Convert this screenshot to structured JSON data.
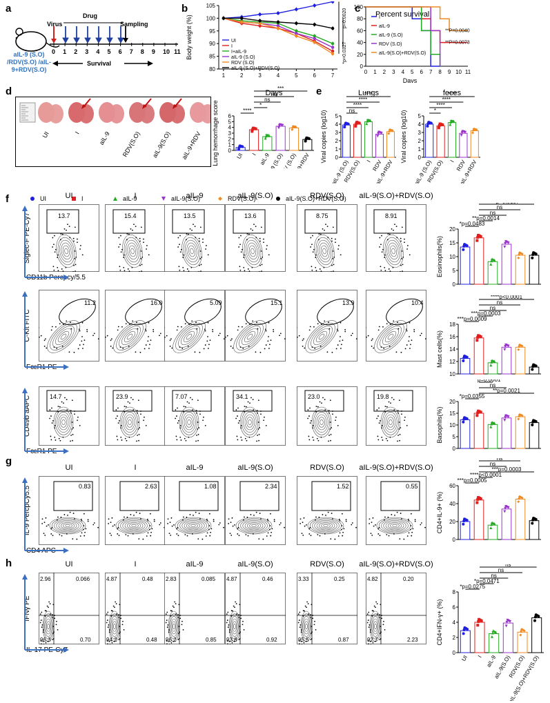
{
  "panels": {
    "a": {
      "letter": "a",
      "labels": {
        "virus": "Virus",
        "drug": "Drug",
        "sampling": "Sampling",
        "survival": "Survival"
      },
      "groups_text": "aIL-9 (S.O)\n/RDV(S.O) /aIL-\n9+RDV(S.O)",
      "days": [
        "0",
        "1",
        "2",
        "3",
        "4",
        "5",
        "6",
        "7",
        "8",
        "9",
        "10",
        "11"
      ]
    },
    "b": {
      "letter": "b"
    },
    "c": {
      "letter": "c"
    },
    "d": {
      "letter": "d",
      "lung_labels": [
        "UI",
        "I",
        "aIL-9",
        "RDV(S.O)",
        "aIL-9(S.O)",
        "aIL-9+RDV"
      ]
    },
    "e": {
      "letter": "e"
    },
    "f": {
      "letter": "f"
    },
    "g": {
      "letter": "g"
    },
    "h": {
      "letter": "h"
    }
  },
  "legend_f": [
    {
      "label": "UI",
      "color": "#1f1fe0",
      "marker": "circle"
    },
    {
      "label": "I",
      "color": "#e01f1f",
      "marker": "square"
    },
    {
      "label": "aIL-9",
      "color": "#22aa22",
      "marker": "triangle"
    },
    {
      "label": "aIL-9(S.O)",
      "color": "#9933cc",
      "marker": "tri-down"
    },
    {
      "label": "RDV(S.O)",
      "color": "#f08a1f",
      "marker": "diamond"
    },
    {
      "label": "aIL-9(S.O)+RDV(S.O)",
      "color": "#000000",
      "marker": "circle"
    }
  ],
  "flow_titles": [
    "UI",
    "I",
    "aIL-9",
    "aIL-9(S.O)",
    "RDV(S.O)",
    "aIL-9(S.O)+RDV(S.O)"
  ],
  "flow_titles_h": [
    "UI",
    "I",
    "aIL-9",
    "aIL-9(S.O)",
    "RDV(S.O)",
    "aIL-9(S.O)+RDV(S.O)"
  ],
  "flow_rows": {
    "eos": {
      "ylabel": "Siglec-F PE-Cy7",
      "xlabel": "CD11b Percpcy/5.5",
      "values": [
        "13.7",
        "15.4",
        "13.5",
        "13.6",
        "8.75",
        "8.91"
      ]
    },
    "mast": {
      "ylabel": "C-Kit FITC",
      "xlabel": "FcεR1 PE",
      "values": [
        "11.2",
        "16.0",
        "5.09",
        "15.1",
        "13.9",
        "10.4"
      ]
    },
    "baso": {
      "ylabel": "CD49b aAPC",
      "xlabel": "FcεR1 PE",
      "values": [
        "14.7",
        "23.9",
        "7.07",
        "34.1",
        "23.0",
        "19.8"
      ]
    },
    "il9": {
      "ylabel": "IL-9 PercpCy5.5",
      "xlabel": "CD4 APC",
      "values": [
        "0.83",
        "2.63",
        "1.08",
        "2.34",
        "1.52",
        "0.55"
      ]
    },
    "ifn": {
      "ylabel": "IFNγ PE",
      "xlabel": "IL-17 PE-Cy7",
      "quads": [
        [
          "2.96",
          "0.066",
          "96.3",
          "0.70"
        ],
        [
          "4.87",
          "0.48",
          "94.2",
          "0.48"
        ],
        [
          "2.83",
          "0.085",
          "96.2",
          "0.85"
        ],
        [
          "4.87",
          "0.46",
          "93.8",
          "0.92"
        ],
        [
          "3.33",
          "0.25",
          "95.5",
          "0.87"
        ],
        [
          "4.82",
          "0.20",
          "92.7",
          "2.23"
        ]
      ]
    }
  },
  "chart_data": [
    {
      "type": "line",
      "panel": "b",
      "ylabel": "Body weight (%)",
      "x": [
        1,
        2,
        3,
        4,
        5,
        6,
        7
      ],
      "ylim": [
        80,
        105
      ],
      "yticks": [
        "80",
        "85",
        "90",
        "95",
        "100",
        "105"
      ],
      "series": [
        {
          "name": "UI",
          "color": "#1f1fe0",
          "values": [
            100,
            100.5,
            101.5,
            102,
            103.5,
            105,
            106.5
          ]
        },
        {
          "name": "I",
          "color": "#e01f1f",
          "values": [
            100,
            98,
            97,
            96,
            94,
            91,
            87
          ]
        },
        {
          "name": "I+aIL-9",
          "color": "#22aa22",
          "values": [
            100,
            99,
            98.5,
            98,
            95,
            93,
            90
          ]
        },
        {
          "name": "aIL-9 (S.O)",
          "color": "#9933cc",
          "values": [
            100,
            98.5,
            98,
            97,
            94,
            92,
            88.5
          ]
        },
        {
          "name": "RDV (S.O)",
          "color": "#f08a1f",
          "values": [
            100,
            98.5,
            98,
            96,
            93,
            90.5,
            86
          ]
        },
        {
          "name": "aIL-9 (S.O)+RDV(S.O)",
          "color": "#000000",
          "values": [
            100,
            100,
            99,
            98.5,
            98,
            97.5,
            96
          ]
        }
      ],
      "annotations": [
        "p=0.0020",
        "*p=0.0327"
      ]
    },
    {
      "type": "line",
      "panel": "c",
      "ylabel": "Percent survival",
      "xlabel": "Days",
      "xticks": [
        "0",
        "1",
        "2",
        "3",
        "4",
        "5",
        "6",
        "7",
        "8",
        "9",
        "10",
        "11"
      ],
      "yticks": [
        "0",
        "20",
        "40",
        "60",
        "80",
        "100"
      ],
      "series": [
        {
          "name": "I",
          "color": "#1f1fe0"
        },
        {
          "name": "aIL-9",
          "color": "#e01f1f"
        },
        {
          "name": "aIL-9 (S.O)",
          "color": "#22aa22"
        },
        {
          "name": "RDV (S.O)",
          "color": "#9933cc"
        },
        {
          "name": "aIL-9(S.O)+RDV(S.O)",
          "color": "#f08a1f"
        }
      ],
      "annotations": [
        "**P=0.0040",
        "**P=0.0073"
      ]
    },
    {
      "type": "bar",
      "panel": "d",
      "title": "Days",
      "ylabel": "Lung hemorrhage score",
      "categories": [
        "UI",
        "I",
        "aIL-9",
        "aIL-9 (S.O)",
        "RDV (S.O)",
        "aIL-9+RDV"
      ],
      "values": [
        0.5,
        3.6,
        2.4,
        4.2,
        3.9,
        1.9
      ],
      "ylim": [
        0,
        6
      ],
      "yticks": [
        "0",
        "1",
        "2",
        "3",
        "4",
        "5",
        "6"
      ],
      "annotations": [
        "****",
        "*",
        "ns",
        "ns",
        "***"
      ]
    },
    {
      "type": "bar",
      "panel": "e-lungs",
      "title": "Lungs",
      "ylabel": "Viral copies (log10)",
      "categories": [
        "aIL-9 (S.O)",
        "RDV(S.O)",
        "I",
        "RDV",
        "aIL-9+RDV"
      ],
      "values": [
        3.9,
        4.0,
        4.3,
        2.8,
        3.1
      ],
      "ylim": [
        0,
        5
      ],
      "yticks": [
        "0",
        "1",
        "2",
        "3",
        "4",
        "5"
      ],
      "annotations": [
        "ns",
        "*",
        "****",
        "****",
        "****"
      ]
    },
    {
      "type": "bar",
      "panel": "e-feces",
      "title": "feces",
      "ylabel": "Viral copies (log10)",
      "categories": [
        "aIL-9 (S.O)",
        "RDV(S.O)",
        "I",
        "RDV",
        "aIL-9+RDV"
      ],
      "values": [
        4.0,
        3.8,
        4.2,
        2.9,
        3.2
      ],
      "ylim": [
        0,
        5
      ],
      "yticks": [
        "0",
        "1",
        "2",
        "3",
        "4",
        "5"
      ],
      "annotations": [
        "*",
        "****",
        "****",
        "****"
      ]
    },
    {
      "type": "bar",
      "panel": "f-eos",
      "ylabel": "Eosinophils(%)",
      "categories": [
        "UI",
        "I",
        "aIL-9",
        "aIL-9(S.O)",
        "RDV(S.O)",
        "aIL-9(S.O)+RDV(S.O)"
      ],
      "values": [
        13.5,
        16.8,
        8.2,
        14.5,
        10.5,
        10.5
      ],
      "ylim": [
        0,
        20
      ],
      "yticks": [
        "0",
        "5",
        "10",
        "15",
        "20"
      ],
      "annotations": [
        "*p=0.0483",
        "**p=0.0014",
        "*p=0.0197",
        "ns",
        "ns"
      ]
    },
    {
      "type": "bar",
      "panel": "f-mast",
      "ylabel": "Mast cells(%)",
      "categories": [
        "UI",
        "I",
        "aIL-9",
        "aIL-9(S.O)",
        "RDV(S.O)",
        "aIL-9(S.O)+RDV(S.O)"
      ],
      "values": [
        12.5,
        15.8,
        11.8,
        14.3,
        14.3,
        11.1
      ],
      "ylim": [
        10,
        18
      ],
      "yticks": [
        "10",
        "12",
        "14",
        "16",
        "18"
      ],
      "annotations": [
        "***p=0.0009",
        "***p=0.0003",
        "****p<0.0001",
        "ns",
        "ns",
        "ns"
      ]
    },
    {
      "type": "bar",
      "panel": "f-baso",
      "ylabel": "Basophils(%)",
      "categories": [
        "UI",
        "I",
        "aIL-9",
        "aIL-9(S.O)",
        "RDV(S.O)",
        "aIL-9(S.O)+RDV(S.O)"
      ],
      "values": [
        12.2,
        15.0,
        10.2,
        13.0,
        13.5,
        11.0
      ],
      "ylim": [
        0,
        20
      ],
      "yticks": [
        "0",
        "5",
        "10",
        "15",
        "20"
      ],
      "annotations": [
        "*p=0.0355",
        "***p=0.0001",
        "**p=0.0021",
        "ns",
        "ns"
      ]
    },
    {
      "type": "bar",
      "panel": "g",
      "ylabel": "CD4+IL-9+ (%)",
      "categories": [
        "UI",
        "I",
        "aIL-9",
        "aIL-9(S.O)",
        "RDV(S.O)",
        "aIL-9(S.O)+RDV(S.O)"
      ],
      "values": [
        20,
        44,
        16,
        34,
        45,
        21
      ],
      "ylim": [
        0,
        60
      ],
      "yticks": [
        "0",
        "20",
        "40",
        "60"
      ],
      "annotations": [
        "***p=0.0005",
        "****p<0.0001",
        "***p=0.0003",
        "ns",
        "ns",
        "ns"
      ]
    },
    {
      "type": "bar",
      "panel": "h",
      "ylabel": "CD4+IFN-γ+ (%)",
      "categories": [
        "UI",
        "I",
        "aIL-9",
        "aIL-9(S.O)",
        "RDV(S.O)",
        "aIL-9(S.O)+RDV(S.O)"
      ],
      "values": [
        2.9,
        4.0,
        2.5,
        3.9,
        2.7,
        4.6
      ],
      "ylim": [
        0,
        8
      ],
      "yticks": [
        "0",
        "2",
        "4",
        "6",
        "8"
      ],
      "annotations": [
        "*p=0.0275",
        "*p=0.0471",
        "ns",
        "ns",
        "ns"
      ]
    }
  ]
}
